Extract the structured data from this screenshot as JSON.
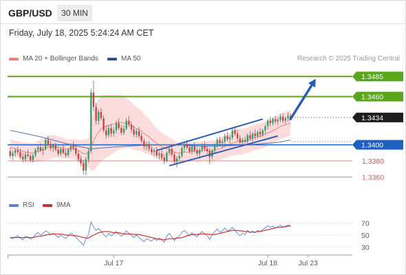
{
  "header": {
    "symbol": "GBP/USD",
    "timeframe": "30 MIN"
  },
  "datetime": "Friday, July 18, 2025 5:24:24 AM CET",
  "legend": {
    "bollinger": "MA 20 + Bollinger Bands",
    "ma50": "MA 50",
    "credit": "Research © 2025 Trading Central"
  },
  "colors": {
    "green": "#5aa51a",
    "blue": "#1f5fbf",
    "red": "#e05050",
    "candle_up": "#2aa56a",
    "candle_down": "#d24040",
    "band_fill": "#fbd6d6",
    "ma20": "#f08080",
    "ma50": "#5570b0",
    "arrow": "#2a5db0",
    "rsi": "#5f7fd0",
    "rsi_ma": "#c83030"
  },
  "chart_data": [
    {
      "type": "candlestick",
      "series_names": [
        "MA 20 + Bollinger Bands",
        "MA 50"
      ],
      "ylim": [
        1.3345,
        1.3492
      ],
      "price_levels": [
        {
          "label": "1.3485",
          "value": 1.3485,
          "kind": "resistance",
          "color": "#5aa51a"
        },
        {
          "label": "1.3460",
          "value": 1.346,
          "kind": "resistance",
          "color": "#5aa51a"
        },
        {
          "label": "1.3434",
          "value": 1.3434,
          "kind": "last",
          "color": "#222222"
        },
        {
          "label": "1.3400",
          "value": 1.34,
          "kind": "pivot",
          "color": "#1f5fbf"
        },
        {
          "label": "1.3380",
          "value": 1.338,
          "kind": "support",
          "color": "#e05050"
        },
        {
          "label": "1.3360",
          "value": 1.336,
          "kind": "support",
          "color": "#e05050"
        }
      ],
      "x_labels": [
        "Jul 17",
        "Jul 18",
        "Jul 23"
      ],
      "x_label_index": [
        41,
        102,
        118
      ],
      "n_slots": 124,
      "candles": [
        [
          1.3392,
          1.3397,
          1.3383,
          1.3386
        ],
        [
          1.3386,
          1.3393,
          1.3381,
          1.339
        ],
        [
          1.339,
          1.3396,
          1.3385,
          1.3393
        ],
        [
          1.3393,
          1.3398,
          1.3388,
          1.3391
        ],
        [
          1.3391,
          1.3395,
          1.3382,
          1.3385
        ],
        [
          1.3385,
          1.339,
          1.3378,
          1.3382
        ],
        [
          1.3382,
          1.3391,
          1.3379,
          1.3388
        ],
        [
          1.3388,
          1.3394,
          1.3384,
          1.3386
        ],
        [
          1.3386,
          1.3389,
          1.3379,
          1.3381
        ],
        [
          1.3381,
          1.3389,
          1.3378,
          1.3387
        ],
        [
          1.3387,
          1.3396,
          1.3384,
          1.3394
        ],
        [
          1.3394,
          1.34,
          1.339,
          1.3397
        ],
        [
          1.3397,
          1.3402,
          1.3391,
          1.3393
        ],
        [
          1.3393,
          1.3398,
          1.3387,
          1.3395
        ],
        [
          1.3395,
          1.3408,
          1.3393,
          1.3406
        ],
        [
          1.3406,
          1.3411,
          1.3398,
          1.3401
        ],
        [
          1.3401,
          1.3405,
          1.3393,
          1.3396
        ],
        [
          1.3396,
          1.3402,
          1.3391,
          1.3399
        ],
        [
          1.3399,
          1.3403,
          1.3392,
          1.3394
        ],
        [
          1.3394,
          1.3398,
          1.3386,
          1.3389
        ],
        [
          1.3389,
          1.3397,
          1.3386,
          1.3395
        ],
        [
          1.3395,
          1.34,
          1.3388,
          1.339
        ],
        [
          1.339,
          1.3394,
          1.3384,
          1.3387
        ],
        [
          1.3387,
          1.3396,
          1.3385,
          1.3394
        ],
        [
          1.3394,
          1.3402,
          1.3391,
          1.3399
        ],
        [
          1.3399,
          1.3404,
          1.3393,
          1.3396
        ],
        [
          1.3396,
          1.3399,
          1.3386,
          1.3389
        ],
        [
          1.3389,
          1.3393,
          1.3379,
          1.3382
        ],
        [
          1.3382,
          1.3386,
          1.3373,
          1.3377
        ],
        [
          1.3377,
          1.3381,
          1.3363,
          1.3368
        ],
        [
          1.3368,
          1.3385,
          1.3362,
          1.3382
        ],
        [
          1.3382,
          1.3395,
          1.3378,
          1.3392
        ],
        [
          1.3392,
          1.347,
          1.3389,
          1.3465
        ],
        [
          1.3465,
          1.348,
          1.3442,
          1.3447
        ],
        [
          1.3447,
          1.3452,
          1.3425,
          1.343
        ],
        [
          1.343,
          1.3444,
          1.3425,
          1.3441
        ],
        [
          1.3441,
          1.3446,
          1.343,
          1.3433
        ],
        [
          1.3433,
          1.3437,
          1.3415,
          1.3418
        ],
        [
          1.3418,
          1.3424,
          1.3408,
          1.3412
        ],
        [
          1.3412,
          1.3425,
          1.3409,
          1.3421
        ],
        [
          1.3421,
          1.3426,
          1.341,
          1.3414
        ],
        [
          1.3414,
          1.3422,
          1.341,
          1.3418
        ],
        [
          1.3418,
          1.343,
          1.3414,
          1.3427
        ],
        [
          1.3427,
          1.3433,
          1.3418,
          1.3421
        ],
        [
          1.3421,
          1.3425,
          1.3412,
          1.3415
        ],
        [
          1.3415,
          1.3424,
          1.3412,
          1.342
        ],
        [
          1.342,
          1.3433,
          1.3418,
          1.343
        ],
        [
          1.343,
          1.3436,
          1.3422,
          1.3425
        ],
        [
          1.3425,
          1.3429,
          1.3415,
          1.3419
        ],
        [
          1.3419,
          1.3424,
          1.341,
          1.3413
        ],
        [
          1.3413,
          1.342,
          1.3409,
          1.3417
        ],
        [
          1.3417,
          1.3422,
          1.3408,
          1.3411
        ],
        [
          1.3411,
          1.3415,
          1.3402,
          1.3405
        ],
        [
          1.3405,
          1.3408,
          1.3394,
          1.3398
        ],
        [
          1.3398,
          1.3404,
          1.3393,
          1.3401
        ],
        [
          1.3401,
          1.3405,
          1.3392,
          1.3395
        ],
        [
          1.3395,
          1.3399,
          1.3388,
          1.3391
        ],
        [
          1.3391,
          1.3396,
          1.3386,
          1.3393
        ],
        [
          1.3393,
          1.3397,
          1.3384,
          1.3387
        ],
        [
          1.3387,
          1.3392,
          1.3382,
          1.3389
        ],
        [
          1.3389,
          1.3394,
          1.3381,
          1.3384
        ],
        [
          1.3384,
          1.3388,
          1.3376,
          1.338
        ],
        [
          1.338,
          1.3392,
          1.3378,
          1.339
        ],
        [
          1.339,
          1.3398,
          1.3387,
          1.3395
        ],
        [
          1.3395,
          1.34,
          1.3385,
          1.3388
        ],
        [
          1.3388,
          1.3391,
          1.3376,
          1.3379
        ],
        [
          1.3379,
          1.3386,
          1.3372,
          1.3383
        ],
        [
          1.3383,
          1.3389,
          1.338,
          1.3386
        ],
        [
          1.3386,
          1.3398,
          1.3384,
          1.3396
        ],
        [
          1.3396,
          1.3404,
          1.3391,
          1.3401
        ],
        [
          1.3401,
          1.3406,
          1.3394,
          1.3397
        ],
        [
          1.3397,
          1.3401,
          1.3389,
          1.3392
        ],
        [
          1.3392,
          1.34,
          1.3388,
          1.3398
        ],
        [
          1.3398,
          1.3403,
          1.339,
          1.3393
        ],
        [
          1.3393,
          1.3397,
          1.3386,
          1.3389
        ],
        [
          1.3389,
          1.3396,
          1.3383,
          1.3394
        ],
        [
          1.3394,
          1.3402,
          1.3391,
          1.3399
        ],
        [
          1.3399,
          1.3404,
          1.3392,
          1.3395
        ],
        [
          1.3395,
          1.3399,
          1.3388,
          1.3392
        ],
        [
          1.3392,
          1.3396,
          1.3376,
          1.3385
        ],
        [
          1.3385,
          1.3395,
          1.3382,
          1.3393
        ],
        [
          1.3393,
          1.3402,
          1.339,
          1.34
        ],
        [
          1.34,
          1.3409,
          1.3396,
          1.3406
        ],
        [
          1.3406,
          1.341,
          1.3398,
          1.3402
        ],
        [
          1.3402,
          1.3407,
          1.3396,
          1.3404
        ],
        [
          1.3404,
          1.3414,
          1.3401,
          1.3411
        ],
        [
          1.3411,
          1.3416,
          1.3404,
          1.3407
        ],
        [
          1.3407,
          1.3412,
          1.3401,
          1.3409
        ],
        [
          1.3409,
          1.342,
          1.3406,
          1.3418
        ],
        [
          1.3418,
          1.3423,
          1.3411,
          1.3414
        ],
        [
          1.3414,
          1.3419,
          1.3405,
          1.3408
        ],
        [
          1.3408,
          1.3412,
          1.3399,
          1.3403
        ],
        [
          1.3403,
          1.3409,
          1.3398,
          1.3406
        ],
        [
          1.3406,
          1.341,
          1.3401,
          1.3404
        ],
        [
          1.3404,
          1.3414,
          1.3402,
          1.3412
        ],
        [
          1.3412,
          1.3417,
          1.3405,
          1.3408
        ],
        [
          1.3408,
          1.3416,
          1.3404,
          1.3414
        ],
        [
          1.3414,
          1.3419,
          1.3407,
          1.3411
        ],
        [
          1.3411,
          1.3418,
          1.3408,
          1.3416
        ],
        [
          1.3416,
          1.3421,
          1.3409,
          1.3413
        ],
        [
          1.3413,
          1.342,
          1.341,
          1.3418
        ],
        [
          1.3418,
          1.3425,
          1.3414,
          1.3423
        ],
        [
          1.3423,
          1.3432,
          1.3419,
          1.343
        ],
        [
          1.343,
          1.3435,
          1.3423,
          1.3427
        ],
        [
          1.3427,
          1.3434,
          1.3424,
          1.3432
        ],
        [
          1.3432,
          1.3436,
          1.3426,
          1.3429
        ],
        [
          1.3429,
          1.3434,
          1.3424,
          1.3431
        ],
        [
          1.3431,
          1.3438,
          1.3428,
          1.3435
        ],
        [
          1.3435,
          1.3439,
          1.3427,
          1.343
        ],
        [
          1.343,
          1.3435,
          1.3426,
          1.3433
        ],
        [
          1.3433,
          1.344,
          1.3429,
          1.3436
        ],
        [
          1.3436,
          1.3439,
          1.343,
          1.3434
        ]
      ],
      "ma20": [
        1.3397,
        1.3396,
        1.3395,
        1.3394,
        1.3393,
        1.3392,
        1.3391,
        1.3391,
        1.339,
        1.339,
        1.3391,
        1.3392,
        1.3393,
        1.3394,
        1.3395,
        1.3397,
        1.3397,
        1.3398,
        1.3398,
        1.3397,
        1.3397,
        1.3396,
        1.3395,
        1.3395,
        1.3395,
        1.3395,
        1.3394,
        1.3393,
        1.3391,
        1.3389,
        1.3389,
        1.339,
        1.3398,
        1.3405,
        1.3411,
        1.3416,
        1.342,
        1.3422,
        1.3423,
        1.3424,
        1.3425,
        1.3426,
        1.3427,
        1.3428,
        1.3428,
        1.3427,
        1.3427,
        1.3426,
        1.3424,
        1.3422,
        1.342,
        1.3419,
        1.3417,
        1.3414,
        1.3412,
        1.341,
        1.3407,
        1.3404,
        1.3402,
        1.34,
        1.3398,
        1.3396,
        1.3395,
        1.3394,
        1.3393,
        1.3391,
        1.339,
        1.339,
        1.339,
        1.3391,
        1.3391,
        1.3391,
        1.3392,
        1.3392,
        1.3392,
        1.3392,
        1.3393,
        1.3393,
        1.3393,
        1.3392,
        1.3392,
        1.3393,
        1.3394,
        1.3395,
        1.3396,
        1.3398,
        1.3399,
        1.34,
        1.3402,
        1.3403,
        1.3404,
        1.3404,
        1.3404,
        1.3405,
        1.3406,
        1.3407,
        1.3408,
        1.3409,
        1.341,
        1.3411,
        1.3412,
        1.3413,
        1.3415,
        1.3416,
        1.3418,
        1.3419,
        1.3421,
        1.3423,
        1.3424,
        1.3425,
        1.3426,
        1.3427
      ],
      "band_width": [
        0.001,
        0.001,
        0.001,
        0.0011,
        0.0011,
        0.0011,
        0.0012,
        0.0012,
        0.0012,
        0.0012,
        0.0012,
        0.0013,
        0.0013,
        0.0014,
        0.0014,
        0.0015,
        0.0015,
        0.0014,
        0.0014,
        0.0013,
        0.0013,
        0.0013,
        0.0012,
        0.0012,
        0.0012,
        0.0012,
        0.0013,
        0.0013,
        0.0015,
        0.0017,
        0.0018,
        0.0018,
        0.003,
        0.0038,
        0.004,
        0.0041,
        0.0041,
        0.004,
        0.0039,
        0.0038,
        0.0037,
        0.0036,
        0.0035,
        0.0034,
        0.0033,
        0.0032,
        0.0031,
        0.003,
        0.0029,
        0.0028,
        0.0027,
        0.0026,
        0.0025,
        0.0024,
        0.0023,
        0.0022,
        0.0021,
        0.002,
        0.0019,
        0.0018,
        0.0017,
        0.0017,
        0.0016,
        0.0015,
        0.0015,
        0.0014,
        0.0014,
        0.0013,
        0.0013,
        0.0013,
        0.0012,
        0.0012,
        0.0012,
        0.0012,
        0.0012,
        0.0012,
        0.0012,
        0.0012,
        0.0012,
        0.0013,
        0.0013,
        0.0013,
        0.0013,
        0.0014,
        0.0014,
        0.0014,
        0.0015,
        0.0015,
        0.0015,
        0.0016,
        0.0016,
        0.0016,
        0.0016,
        0.0016,
        0.0016,
        0.0016,
        0.0016,
        0.0016,
        0.0016,
        0.0016,
        0.0016,
        0.0016,
        0.0016,
        0.0016,
        0.0016,
        0.0016,
        0.0016,
        0.0016,
        0.0016,
        0.0016,
        0.0016,
        0.0016
      ],
      "ma50": [
        [
          0,
          1.3418
        ],
        [
          12,
          1.341
        ],
        [
          24,
          1.34
        ],
        [
          32,
          1.3395
        ],
        [
          44,
          1.3398
        ],
        [
          56,
          1.34
        ],
        [
          66,
          1.34
        ],
        [
          76,
          1.3398
        ],
        [
          88,
          1.3399
        ],
        [
          98,
          1.3401
        ],
        [
          106,
          1.3403
        ],
        [
          111,
          1.3406
        ]
      ],
      "trend_channel": {
        "upper": [
          [
            58,
            1.3393
          ],
          [
            100,
            1.3432
          ]
        ],
        "lower": [
          [
            63,
            1.3374
          ],
          [
            106,
            1.3411
          ]
        ]
      },
      "projection_arrow": {
        "from": [
          111,
          1.3432
        ],
        "to": [
          121,
          1.3482
        ]
      }
    },
    {
      "type": "line",
      "series_names": [
        "RSI",
        "9MA"
      ],
      "ylim": [
        20,
        80
      ],
      "levels": [
        30,
        50,
        70
      ],
      "rsi": [
        46,
        44,
        47,
        49,
        45,
        42,
        48,
        47,
        43,
        46,
        51,
        54,
        50,
        53,
        57,
        55,
        51,
        53,
        50,
        46,
        50,
        47,
        44,
        49,
        53,
        51,
        46,
        42,
        38,
        33,
        44,
        51,
        72,
        64,
        58,
        61,
        57,
        51,
        47,
        53,
        49,
        52,
        56,
        52,
        48,
        52,
        57,
        53,
        49,
        46,
        50,
        46,
        42,
        39,
        44,
        42,
        40,
        44,
        41,
        45,
        42,
        38,
        48,
        53,
        47,
        41,
        46,
        48,
        55,
        58,
        53,
        49,
        54,
        50,
        47,
        52,
        56,
        52,
        49,
        43,
        51,
        56,
        60,
        55,
        57,
        62,
        57,
        59,
        63,
        58,
        53,
        49,
        53,
        51,
        58,
        54,
        57,
        54,
        58,
        56,
        59,
        62,
        66,
        63,
        65,
        62,
        64,
        67,
        63,
        65,
        67,
        66
      ],
      "rsi_ma": [
        46,
        46,
        46,
        46,
        46,
        46,
        46,
        46,
        46,
        46,
        47,
        48,
        48,
        49,
        50,
        51,
        51,
        52,
        52,
        52,
        52,
        51,
        50,
        50,
        50,
        49,
        49,
        48,
        47,
        46,
        45,
        45,
        48,
        50,
        52,
        54,
        55,
        56,
        56,
        56,
        55,
        54,
        54,
        54,
        53,
        52,
        52,
        52,
        52,
        51,
        51,
        51,
        50,
        49,
        48,
        47,
        46,
        45,
        44,
        43,
        43,
        42,
        43,
        44,
        44,
        44,
        45,
        45,
        46,
        47,
        49,
        50,
        51,
        51,
        51,
        52,
        52,
        52,
        52,
        51,
        51,
        51,
        52,
        53,
        54,
        55,
        56,
        57,
        58,
        58,
        58,
        57,
        57,
        56,
        56,
        55,
        55,
        55,
        56,
        56,
        57,
        58,
        59,
        60,
        61,
        62,
        63,
        63,
        64,
        64,
        65,
        65
      ]
    }
  ]
}
